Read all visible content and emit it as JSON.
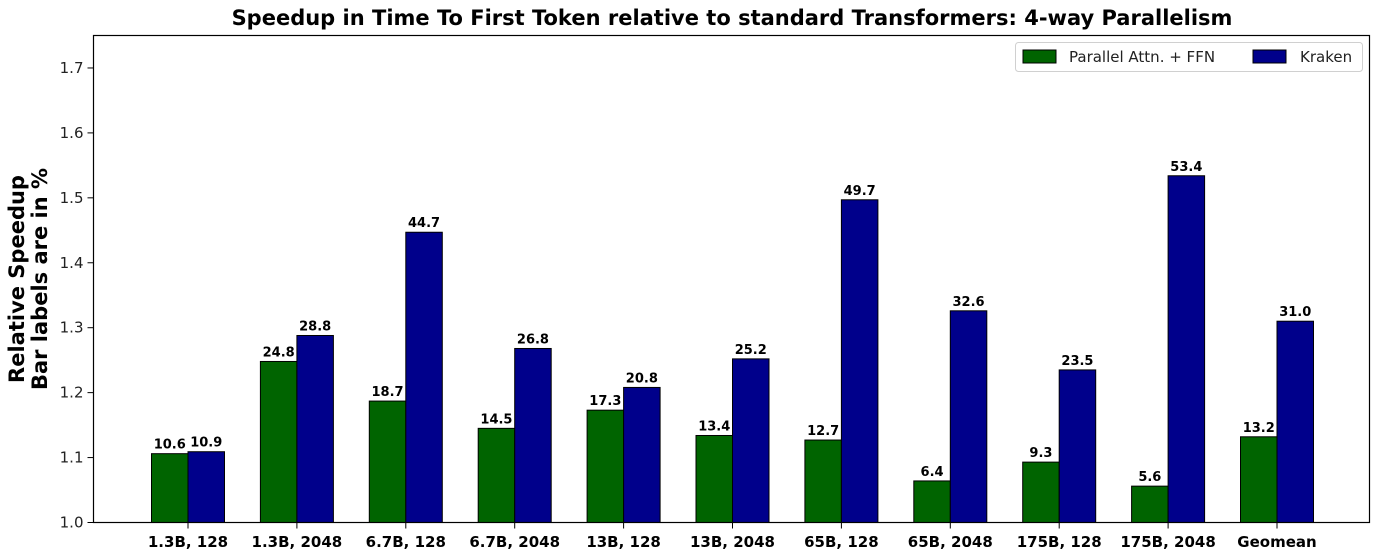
{
  "chart_data": {
    "type": "bar",
    "title": "Speedup in Time To First Token relative to standard Transformers: 4-way Parallelism",
    "xlabel": "",
    "ylabel": [
      "Relative Speedup",
      "Bar labels are in %"
    ],
    "ylim": [
      1.0,
      1.75
    ],
    "yticks": [
      "1.0",
      "1.1",
      "1.2",
      "1.3",
      "1.4",
      "1.5",
      "1.6",
      "1.7"
    ],
    "grid": false,
    "legend_position": "upper right",
    "categories": [
      "1.3B, 128",
      "1.3B, 2048",
      "6.7B, 128",
      "6.7B, 2048",
      "13B, 128",
      "13B, 2048",
      "65B, 128",
      "65B, 2048",
      "175B, 128",
      "175B, 2048",
      "Geomean"
    ],
    "series": [
      {
        "name": "Parallel Attn. + FFN",
        "color": "#006400",
        "values": [
          1.106,
          1.248,
          1.187,
          1.145,
          1.173,
          1.134,
          1.127,
          1.064,
          1.093,
          1.056,
          1.132
        ],
        "labels": [
          "10.6",
          "24.8",
          "18.7",
          "14.5",
          "17.3",
          "13.4",
          "12.7",
          "6.4",
          "9.3",
          "5.6",
          "13.2"
        ]
      },
      {
        "name": "Kraken",
        "color": "#00008B",
        "values": [
          1.109,
          1.288,
          1.447,
          1.268,
          1.208,
          1.252,
          1.497,
          1.326,
          1.235,
          1.534,
          1.31
        ],
        "labels": [
          "10.9",
          "28.8",
          "44.7",
          "26.8",
          "20.8",
          "25.2",
          "49.7",
          "32.6",
          "23.5",
          "53.4",
          "31.0"
        ]
      }
    ]
  }
}
